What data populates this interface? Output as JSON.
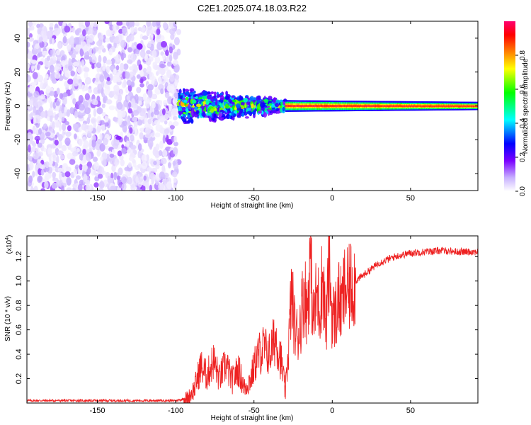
{
  "title": "C2E1.2025.074.18.03.R22",
  "chart_data": [
    {
      "type": "heatmap",
      "title": "C2E1.2025.074.18.03.R22",
      "xlabel": "Height of straight line (km)",
      "ylabel": "Frequency (Hz)",
      "xlim": [
        -195,
        93
      ],
      "ylim": [
        -50,
        50
      ],
      "x_ticks": [
        "-150",
        "-100",
        "-50",
        "0",
        "50"
      ],
      "y_ticks": [
        "40",
        "20",
        "0",
        "-20",
        "-40"
      ],
      "colorbar": {
        "label": "Normalized spectral amplitude",
        "range": [
          0,
          1
        ],
        "ticks": [
          "0.0",
          "0.2",
          "0.4",
          "0.6",
          "0.8"
        ],
        "colormap": "rainbow",
        "colors": [
          "#ffffff",
          "#c8b0ff",
          "#7a00ff",
          "#0000ff",
          "#00ffff",
          "#00ff00",
          "#ffff00",
          "#ff8000",
          "#ff0000",
          "#ff0070"
        ]
      },
      "regions": [
        {
          "x_range": [
            -195,
            -98
          ],
          "description_values": {
            "amplitude": [
              0.0,
              0.2
            ],
            "frequency_spread": [
              -50,
              50
            ]
          }
        },
        {
          "x_range": [
            -98,
            -30
          ],
          "frequency_center": 0,
          "frequency_halfwidth": [
            12,
            4
          ],
          "amplitude": [
            0.2,
            0.8
          ]
        },
        {
          "x_range": [
            -30,
            93
          ],
          "frequency_center": 0,
          "frequency_halfwidth": [
            3,
            2
          ],
          "amplitude": [
            0.6,
            1.0
          ]
        }
      ]
    },
    {
      "type": "line",
      "xlabel": "Height of straight line (km)",
      "ylabel": "SNR (10 * v/v)",
      "yscale_label": "(x10",
      "yscale_exp": "4",
      "xlim": [
        -195,
        93
      ],
      "ylim": [
        0,
        1.37
      ],
      "x_ticks": [
        "-150",
        "-100",
        "-50",
        "0",
        "50"
      ],
      "y_ticks": [
        "1.2",
        "1.0",
        "0.8",
        "0.6",
        "0.4",
        "0.2"
      ],
      "color": "#ee2222",
      "series": [
        {
          "x": [
            -195,
            -150,
            -100,
            -92,
            -88,
            -84,
            -80,
            -76,
            -72,
            -68,
            -64,
            -60,
            -56,
            -52,
            -48,
            -44,
            -40,
            -36,
            -32,
            -30,
            -28,
            -26,
            -24,
            -22,
            -20,
            -18,
            -16,
            -14,
            -12,
            -10,
            -8,
            -6,
            -4,
            -2,
            0,
            2,
            4,
            6,
            8,
            10,
            12,
            15,
            20,
            25,
            30,
            40,
            50,
            60,
            70,
            80,
            93
          ],
          "values": [
            0.02,
            0.02,
            0.02,
            0.04,
            0.12,
            0.3,
            0.22,
            0.35,
            0.2,
            0.32,
            0.18,
            0.28,
            0.12,
            0.2,
            0.38,
            0.45,
            0.4,
            0.55,
            0.3,
            0.08,
            0.45,
            0.9,
            0.62,
            0.55,
            0.7,
            0.95,
            0.75,
            1.2,
            0.65,
            0.9,
            0.78,
            1.05,
            0.6,
            1.15,
            0.7,
            0.72,
            0.85,
            0.78,
            0.95,
            0.9,
            0.98,
            1.0,
            1.05,
            1.1,
            1.15,
            1.2,
            1.23,
            1.24,
            1.25,
            1.24,
            1.24
          ]
        }
      ]
    }
  ]
}
